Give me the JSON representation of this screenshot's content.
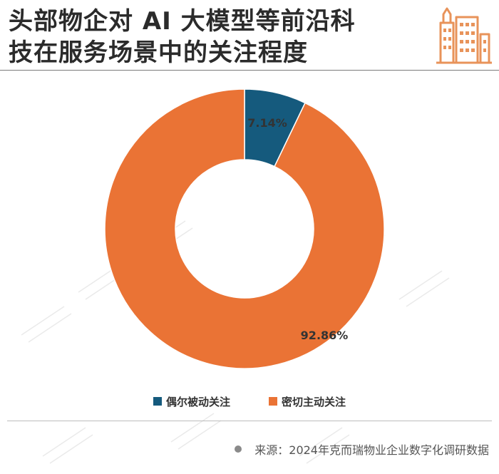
{
  "header": {
    "title_line1": "头部物企对 AI 大模型等前沿科",
    "title_line2": "技在服务场景中的关注程度"
  },
  "icons": {
    "logo": "city-buildings-icon",
    "source_bullet": "dot-icon"
  },
  "colors": {
    "series1": "#155a7d",
    "series2": "#ea7335",
    "title": "#2b2b2b",
    "logo": "#e8935a"
  },
  "chart_data": {
    "type": "pie",
    "style": "donut",
    "categories": [
      "偶尔被动关注",
      "密切主动关注"
    ],
    "values": [
      7.14,
      92.86
    ],
    "labels": [
      "7.14%",
      "92.86%"
    ],
    "legend": "bottom"
  },
  "source": {
    "text": "来源：2024年克而瑞物业企业数字化调研数据"
  }
}
